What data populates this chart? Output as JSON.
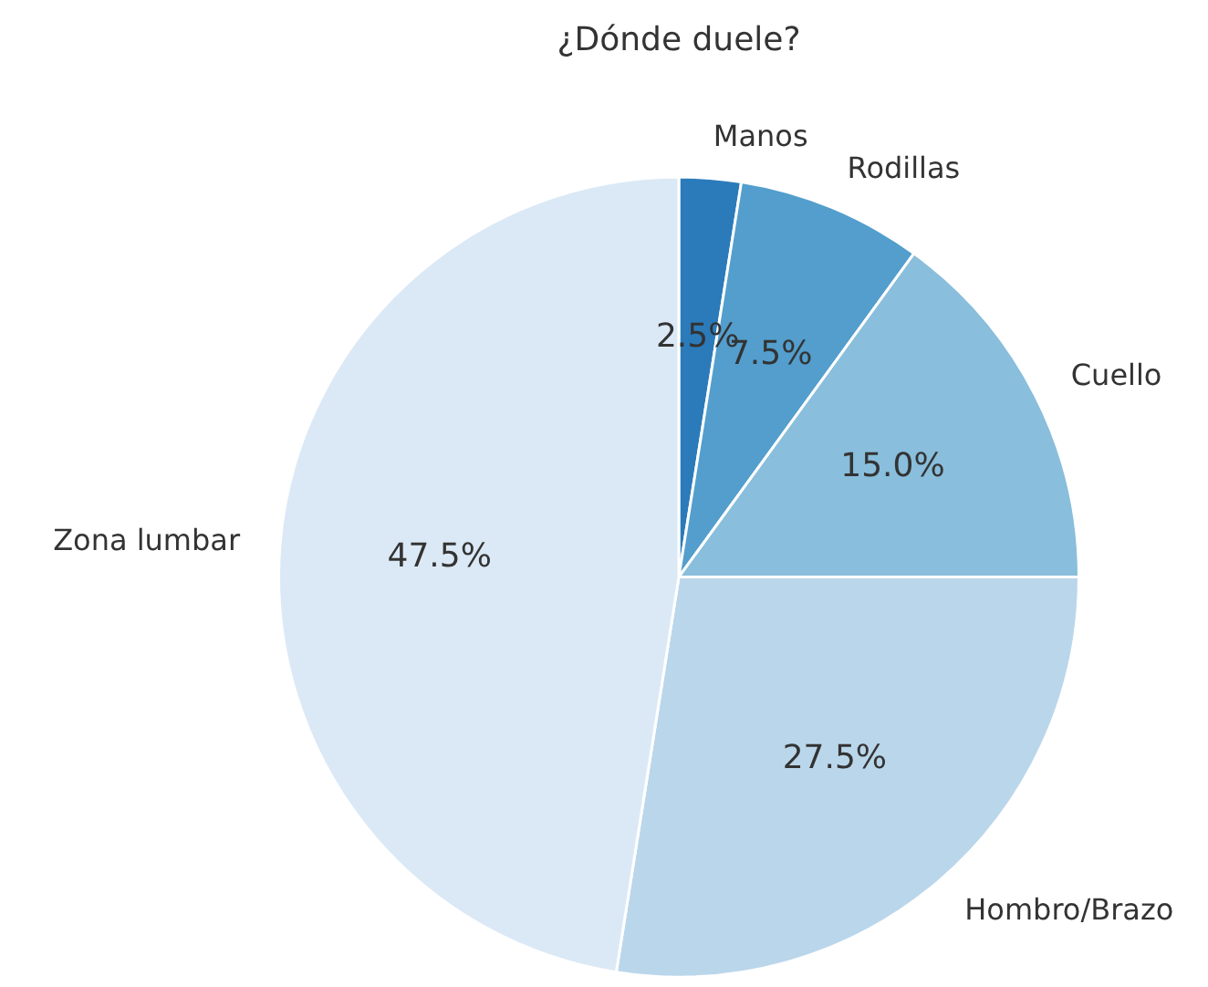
{
  "chart_data": {
    "type": "pie",
    "title": "¿Dónde duele?",
    "categories": [
      "Manos",
      "Rodillas",
      "Cuello",
      "Hombro/Brazo",
      "Zona lumbar"
    ],
    "values": [
      2.5,
      7.5,
      15.0,
      27.5,
      47.5
    ],
    "colors": [
      "#2b7bba",
      "#539ecd",
      "#89bedc",
      "#bad6eb",
      "#dbe9f6"
    ],
    "value_labels": [
      "2.5%",
      "7.5%",
      "15.0%",
      "27.5%",
      "47.5%"
    ],
    "legend": false
  }
}
